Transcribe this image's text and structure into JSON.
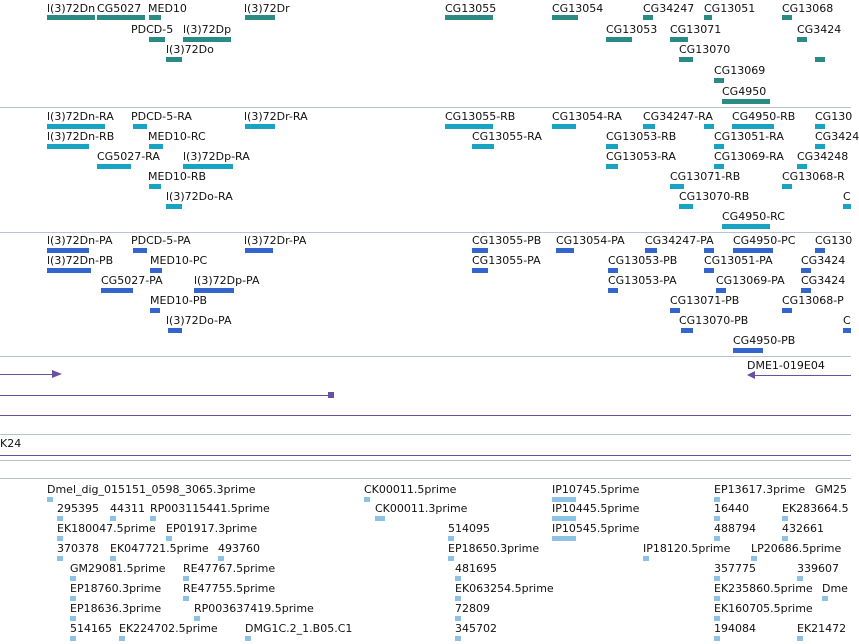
{
  "colors": {
    "gene": "#2a8a84",
    "transcript": "#19a3c2",
    "protein": "#3366cc",
    "alignment": "#6a4fa3",
    "est": "#8ec1e6",
    "separator": "#b8c3cf"
  },
  "genes": [
    "l(3)72Dn",
    "CG5027",
    "MED10",
    "CG13055",
    "CG13054",
    "CG34247",
    "CG13051",
    "CG13068",
    "PDCD-5",
    "l(3)72Dp",
    "l(3)72Dr",
    "CG13053",
    "CG13071",
    "CG3424",
    "l(3)72Do",
    "CG13070",
    "CG13069",
    "CG4950"
  ],
  "transcripts": [
    "l(3)72Dn-RA",
    "PDCD-5-RA",
    "l(3)72Dr-RA",
    "CG13055-RB",
    "CG13054-RA",
    "CG34247-RA",
    "CG4950-RB",
    "CG130",
    "l(3)72Dn-RB",
    "MED10-RC",
    "CG13055-RA",
    "CG13053-RB",
    "CG13051-RA",
    "CG3424",
    "CG5027-RA",
    "l(3)72Dp-RA",
    "CG13053-RA",
    "CG13069-RA",
    "CG34248",
    "MED10-RB",
    "CG13071-RB",
    "CG13068-R",
    "l(3)72Do-RA",
    "CG13070-RB",
    "C",
    "CG4950-RC"
  ],
  "proteins": [
    "l(3)72Dn-PA",
    "PDCD-5-PA",
    "l(3)72Dr-PA",
    "CG13055-PB",
    "CG13054-PA",
    "CG34247-PA",
    "CG4950-PC",
    "CG130",
    "l(3)72Dn-PB",
    "MED10-PC",
    "CG13055-PA",
    "CG13053-PB",
    "CG13051-PA",
    "CG3424",
    "CG5027-PA",
    "l(3)72Dp-PA",
    "CG13053-PA",
    "CG13069-PA",
    "CG3424",
    "MED10-PB",
    "CG13071-PB",
    "CG13068-P",
    "l(3)72Do-PA",
    "CG13070-PB",
    "C",
    "CG4950-PB"
  ],
  "alignments": {
    "label": "DME1-019E04",
    "partial_label": "K24"
  },
  "ests": [
    "Dmel_dig_015151_0598_3065.3prime",
    "CK00011.5prime",
    "IP10745.5prime",
    "EP13617.3prime",
    "GM25",
    "295395",
    "44311",
    "RP003115441.5prime",
    "CK00011.3prime",
    "IP10445.5prime",
    "16440",
    "EK283664.5",
    "EK180047.5prime",
    "EP01917.3prime",
    "514095",
    "IP10545.5prime",
    "488794",
    "432661",
    "370378",
    "EK047721.5prime",
    "493760",
    "EP18650.3prime",
    "IP18120.5prime",
    "LP20686.5prime",
    "GM29081.5prime",
    "RE47767.5prime",
    "481695",
    "357775",
    "339607",
    "EP18760.3prime",
    "RE47755.5prime",
    "EK063254.5prime",
    "EK235860.5prime",
    "Dme",
    "EP18636.3prime",
    "RP003637419.5prime",
    "72809",
    "EK160705.5prime",
    "514165",
    "EK224702.5prime",
    "DMG1C.2_1.B05.C1",
    "345702",
    "194084",
    "EK21472"
  ]
}
